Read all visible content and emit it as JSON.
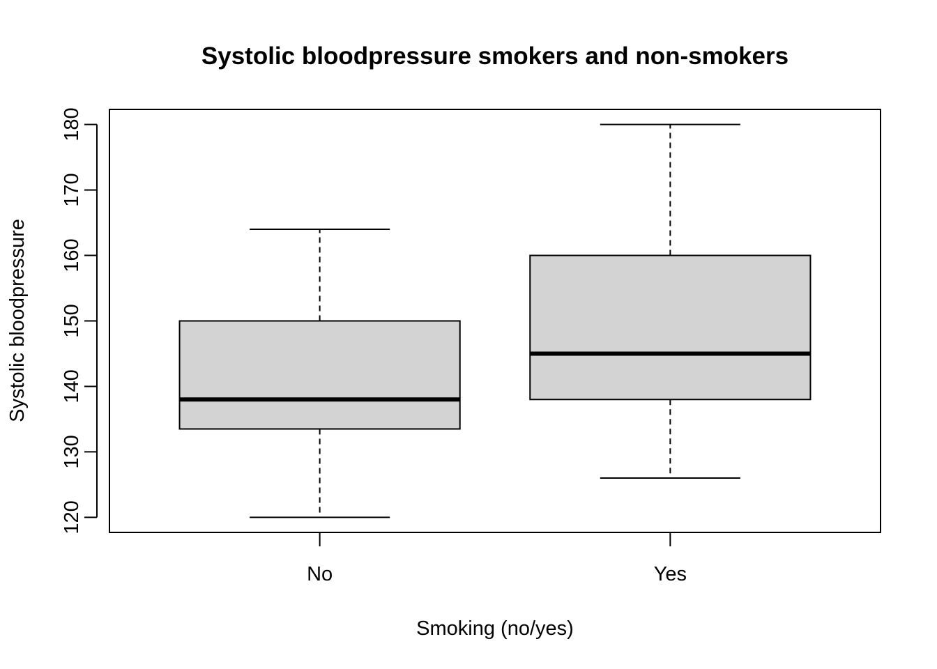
{
  "chart_data": {
    "type": "box",
    "title": "Systolic bloodpressure smokers and non-smokers",
    "xlabel": "Smoking (no/yes)",
    "ylabel": "Systolic bloodpressure",
    "categories": [
      "No",
      "Yes"
    ],
    "yticks": [
      "120",
      "130",
      "140",
      "150",
      "160",
      "170",
      "180"
    ],
    "ylim": [
      117.7,
      182.3
    ],
    "boxes": [
      {
        "category": "No",
        "whisker_low": 120,
        "q1": 133.5,
        "median": 138,
        "q3": 150,
        "whisker_high": 164
      },
      {
        "category": "Yes",
        "whisker_low": 126,
        "q1": 138,
        "median": 145,
        "q3": 160,
        "whisker_high": 180
      }
    ],
    "box_color": "#d3d3d3",
    "grid": false
  }
}
